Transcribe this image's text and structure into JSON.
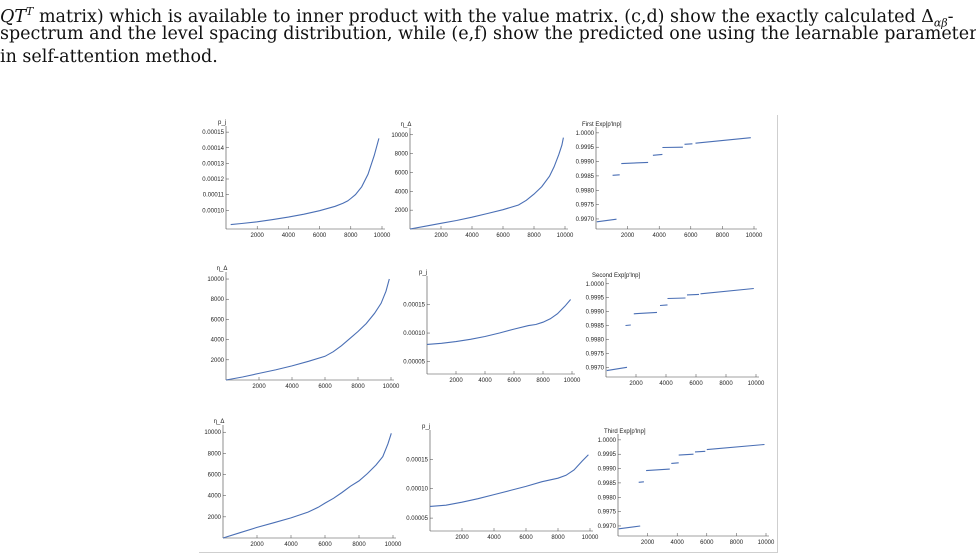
{
  "text": {
    "line1": "QT^T matrix) which is available to inner product with the value matrix. (c,d) show the exactly calculated Δαβ-",
    "line1_parts": {
      "lead": "QT",
      "sup": "T",
      "mid": " matrix) which is available to inner product with the value matrix. (c,d) show the exactly calculated Δ",
      "sub": "αβ",
      "tail": "-"
    },
    "line2": "spectrum and the level spacing distribution, while (e,f) show the predicted one using the learnable parameters",
    "line3": "in self-attention method."
  },
  "colors": {
    "curve": "#4a6fb5",
    "axis": "#444444"
  },
  "chart_data": [
    {
      "type": "line",
      "ylabel": "p_j",
      "xticks": [
        "2000",
        "4000",
        "6000",
        "8000",
        "10000"
      ],
      "yticks": [
        "0.00010",
        "0.00011",
        "0.00012",
        "0.00013",
        "0.00014",
        "0.00015"
      ],
      "xlim": [
        0,
        10000
      ],
      "ylim": [
        8.8e-05,
        0.000152
      ],
      "x": [
        300,
        1000,
        2000,
        3000,
        4000,
        5000,
        6000,
        7000,
        7500,
        7800,
        8000,
        8300,
        8700,
        9100,
        9500,
        9800
      ],
      "y": [
        9.08e-05,
        9.15e-05,
        9.26e-05,
        9.4e-05,
        9.56e-05,
        9.75e-05,
        9.97e-05,
        0.0001025,
        0.0001045,
        0.000106,
        0.0001075,
        0.00011,
        0.000115,
        0.000123,
        0.000135,
        0.000146
      ]
    },
    {
      "type": "line",
      "ylabel": "η_Δ",
      "xticks": [
        "2000",
        "4000",
        "6000",
        "8000",
        "10000"
      ],
      "yticks": [
        "2000",
        "4000",
        "6000",
        "8000",
        "10000"
      ],
      "xlim": [
        0,
        10000
      ],
      "ylim": [
        0,
        10400
      ],
      "x": [
        0,
        1000,
        2000,
        3000,
        4000,
        5000,
        6000,
        7000,
        7500,
        8000,
        8500,
        9000,
        9300,
        9600,
        9800,
        9900
      ],
      "y": [
        0,
        300,
        600,
        900,
        1250,
        1650,
        2050,
        2550,
        3050,
        3700,
        4500,
        5600,
        6600,
        7900,
        8900,
        9700
      ]
    },
    {
      "type": "line",
      "title": "First Exp[p'lnp]",
      "xticks": [
        "2000",
        "4000",
        "6000",
        "8000",
        "10000"
      ],
      "yticks": [
        "0.9970",
        "0.9975",
        "0.9980",
        "0.9985",
        "0.9990",
        "0.9995",
        "1.0000"
      ],
      "xlim": [
        0,
        10000
      ],
      "ylim": [
        0.99665,
        1.0001
      ],
      "segments": [
        {
          "x": [
            50,
            1300
          ],
          "y": [
            0.9969,
            0.99699
          ]
        },
        {
          "x": [
            1050,
            1500
          ],
          "y": [
            0.99852,
            0.99854
          ]
        },
        {
          "x": [
            1600,
            3300
          ],
          "y": [
            0.99893,
            0.99897
          ]
        },
        {
          "x": [
            3600,
            4200
          ],
          "y": [
            0.99922,
            0.99925
          ]
        },
        {
          "x": [
            4200,
            5500
          ],
          "y": [
            0.99949,
            0.9995
          ]
        },
        {
          "x": [
            5600,
            6100
          ],
          "y": [
            0.9996,
            0.99962
          ]
        },
        {
          "x": [
            6300,
            9800
          ],
          "y": [
            0.99964,
            0.99983
          ]
        }
      ]
    },
    {
      "type": "line",
      "ylabel": "η_Δ",
      "xticks": [
        "2000",
        "4000",
        "6000",
        "8000",
        "10000"
      ],
      "yticks": [
        "2000",
        "4000",
        "6000",
        "8000",
        "10000"
      ],
      "xlim": [
        0,
        10000
      ],
      "ylim": [
        0,
        10400
      ],
      "x": [
        0,
        1000,
        2000,
        3000,
        4000,
        5000,
        6000,
        6500,
        7000,
        7500,
        8000,
        8500,
        9000,
        9400,
        9700,
        9900
      ],
      "y": [
        0,
        300,
        650,
        1000,
        1400,
        1850,
        2350,
        2800,
        3400,
        4100,
        4800,
        5600,
        6600,
        7600,
        8800,
        10000
      ]
    },
    {
      "type": "line",
      "ylabel": "p_j",
      "xticks": [
        "2000",
        "4000",
        "6000",
        "8000",
        "10000"
      ],
      "yticks": [
        "0.00005",
        "0.00010",
        "0.00015"
      ],
      "xlim": [
        0,
        10000
      ],
      "ylim": [
        2.8e-05,
        0.000195
      ],
      "x": [
        0,
        1000,
        2000,
        3000,
        4000,
        5000,
        6000,
        7000,
        7500,
        8000,
        8500,
        9000,
        9500,
        9900
      ],
      "y": [
        8e-05,
        8.2e-05,
        8.5e-05,
        8.9e-05,
        9.4e-05,
        0.0001,
        0.000107,
        0.000113,
        0.000115,
        0.000119,
        0.000125,
        0.000134,
        0.000147,
        0.000159
      ]
    },
    {
      "type": "line",
      "title": "Second Exp[p'lnp]",
      "xticks": [
        "2000",
        "4000",
        "6000",
        "8000",
        "10000"
      ],
      "yticks": [
        "0.9970",
        "0.9975",
        "0.9980",
        "0.9985",
        "0.9990",
        "0.9995",
        "1.0000"
      ],
      "xlim": [
        0,
        10000
      ],
      "ylim": [
        0.99665,
        1.0001
      ],
      "segments": [
        {
          "x": [
            50,
            1400
          ],
          "y": [
            0.99688,
            0.997
          ]
        },
        {
          "x": [
            1300,
            1650
          ],
          "y": [
            0.9985,
            0.99852
          ]
        },
        {
          "x": [
            1850,
            3400
          ],
          "y": [
            0.99892,
            0.99897
          ]
        },
        {
          "x": [
            3600,
            4100
          ],
          "y": [
            0.99922,
            0.99924
          ]
        },
        {
          "x": [
            4100,
            5300
          ],
          "y": [
            0.99947,
            0.99949
          ]
        },
        {
          "x": [
            5400,
            6200
          ],
          "y": [
            0.9996,
            0.99962
          ]
        },
        {
          "x": [
            6300,
            9850
          ],
          "y": [
            0.99964,
            0.99983
          ]
        }
      ]
    },
    {
      "type": "line",
      "ylabel": "η_Δ",
      "xticks": [
        "2000",
        "4000",
        "6000",
        "8000",
        "10000"
      ],
      "yticks": [
        "2000",
        "4000",
        "6000",
        "8000",
        "10000"
      ],
      "xlim": [
        0,
        10000
      ],
      "ylim": [
        0,
        10400
      ],
      "x": [
        0,
        1000,
        2000,
        3000,
        4000,
        5000,
        5600,
        6000,
        6500,
        7000,
        7500,
        8000,
        8500,
        9000,
        9400,
        9700,
        9900
      ],
      "y": [
        0,
        500,
        1000,
        1450,
        1900,
        2450,
        2900,
        3300,
        3750,
        4300,
        4900,
        5400,
        6100,
        6900,
        7700,
        8900,
        9900
      ]
    },
    {
      "type": "line",
      "ylabel": "p_j",
      "xticks": [
        "2000",
        "4000",
        "6000",
        "8000",
        "10000"
      ],
      "yticks": [
        "0.00005",
        "0.00010",
        "0.00015"
      ],
      "xlim": [
        0,
        10000
      ],
      "ylim": [
        2.8e-05,
        0.000195
      ],
      "x": [
        0,
        1000,
        2000,
        3000,
        4000,
        5000,
        6000,
        7000,
        8000,
        8500,
        9000,
        9500,
        9900
      ],
      "y": [
        7e-05,
        7.2e-05,
        7.7e-05,
        8.3e-05,
        9e-05,
        9.7e-05,
        0.000104,
        0.000112,
        0.000118,
        0.000123,
        0.000132,
        0.000147,
        0.000158
      ]
    },
    {
      "type": "line",
      "title": "Third Exp[p'lnp]",
      "xticks": [
        "2000",
        "4000",
        "6000",
        "8000",
        "10000"
      ],
      "yticks": [
        "0.9970",
        "0.9975",
        "0.9980",
        "0.9985",
        "0.9990",
        "0.9995",
        "1.0000"
      ],
      "xlim": [
        0,
        10000
      ],
      "ylim": [
        0.99665,
        1.0001
      ],
      "segments": [
        {
          "x": [
            50,
            1500
          ],
          "y": [
            0.9969,
            0.997
          ]
        },
        {
          "x": [
            1400,
            1750
          ],
          "y": [
            0.99852,
            0.99854
          ]
        },
        {
          "x": [
            1900,
            3500
          ],
          "y": [
            0.99893,
            0.99898
          ]
        },
        {
          "x": [
            3600,
            4100
          ],
          "y": [
            0.99918,
            0.9992
          ]
        },
        {
          "x": [
            4100,
            5100
          ],
          "y": [
            0.99947,
            0.9995
          ]
        },
        {
          "x": [
            5200,
            5900
          ],
          "y": [
            0.99958,
            0.9996
          ]
        },
        {
          "x": [
            6000,
            9900
          ],
          "y": [
            0.99966,
            0.99984
          ]
        }
      ]
    }
  ]
}
